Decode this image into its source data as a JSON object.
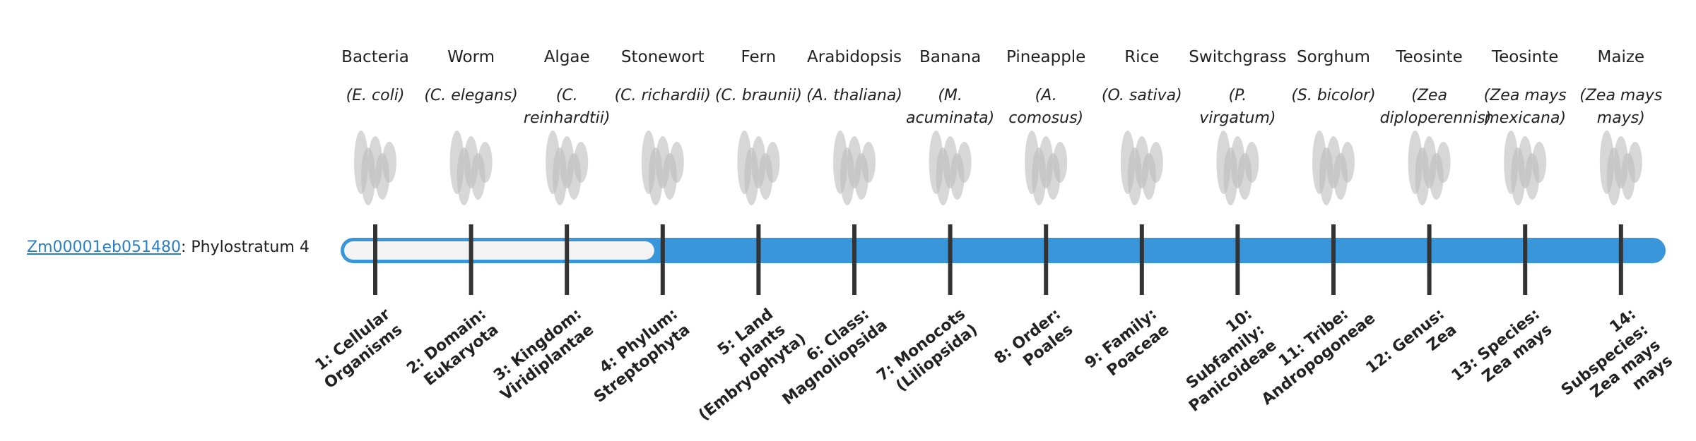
{
  "gene": {
    "id": "Zm00001eb051480",
    "label": ": Phylostratum",
    "stratum": 4
  },
  "strata": [
    {
      "organism": "Bacteria",
      "species": "(E. coli)",
      "rank": "1: Cellular Organisms"
    },
    {
      "organism": "Worm",
      "species": "(C. elegans)",
      "rank": "2: Domain: Eukaryota"
    },
    {
      "organism": "Algae",
      "species": "(C. reinhardtii)",
      "rank": "3: Kingdom: Viridiplantae"
    },
    {
      "organism": "Stonewort",
      "species": "(C. richardii)",
      "rank": "4: Phylum: Streptophyta"
    },
    {
      "organism": "Fern",
      "species": "(C. braunii)",
      "rank": "5: Land plants (Embryophyta)"
    },
    {
      "organism": "Arabidopsis",
      "species": "(A. thaliana)",
      "rank": "6: Class: Magnoliopsida"
    },
    {
      "organism": "Banana",
      "species": "(M. acuminata)",
      "rank": "7: Monocots (Liliopsida)"
    },
    {
      "organism": "Pineapple",
      "species": "(A. comosus)",
      "rank": "8: Order: Poales"
    },
    {
      "organism": "Rice",
      "species": "(O. sativa)",
      "rank": "9: Family: Poaceae"
    },
    {
      "organism": "Switchgrass",
      "species": "(P. virgatum)",
      "rank": "10: Subfamily: Panicoideae"
    },
    {
      "organism": "Sorghum",
      "species": "(S. bicolor)",
      "rank": "11: Tribe: Andropogoneae"
    },
    {
      "organism": "Teosinte",
      "species": "(Zea diploperennis)",
      "rank": "12: Genus: Zea"
    },
    {
      "organism": "Teosinte",
      "species": "(Zea mays mexicana)",
      "rank": "13: Species: Zea mays"
    },
    {
      "organism": "Maize",
      "species": "(Zea mays mays)",
      "rank": "14: Subspecies: Zea mays mays"
    }
  ]
}
